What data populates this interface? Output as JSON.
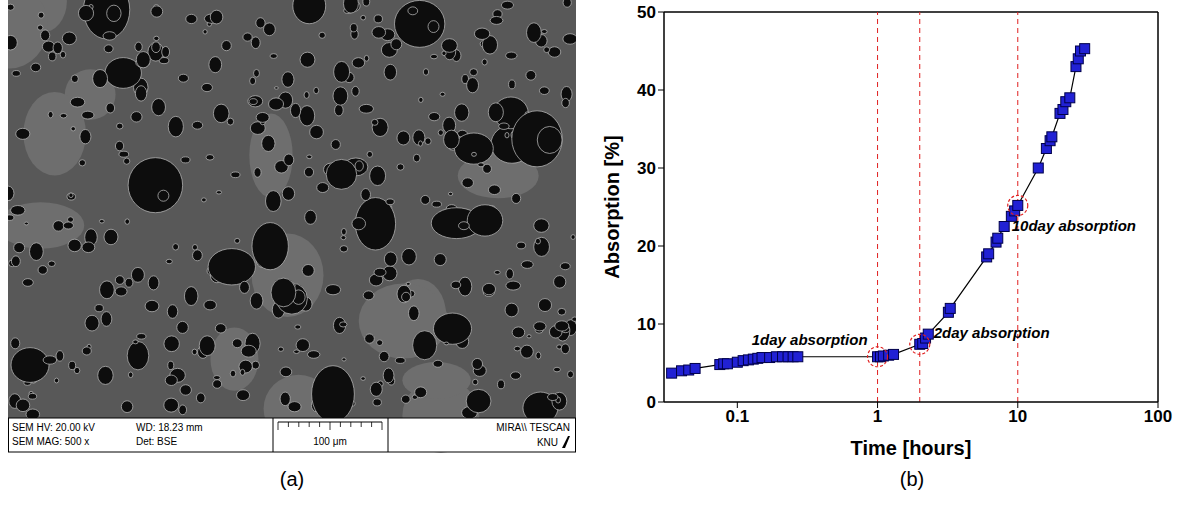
{
  "image_panel": {
    "label": "(a)",
    "info": [
      [
        "SEM HV: 20.00 kV",
        "WD: 18.23 mm"
      ],
      [
        "SEM MAG: 500 x",
        "Det: BSE"
      ]
    ],
    "scale_bar": "100 μm",
    "instrument": "MIRA\\\\ TESCAN",
    "logo": "KNU"
  },
  "chart_data": {
    "type": "line",
    "panel_label": "(b)",
    "xlabel": "Time [hours]",
    "ylabel": "Absorption [%]",
    "log": "x",
    "xlim": [
      0.03,
      100
    ],
    "xticks": [
      0.1,
      1,
      10,
      100
    ],
    "ylim": [
      0,
      50
    ],
    "yticks": [
      0,
      10,
      20,
      30,
      40,
      50
    ],
    "grid": false,
    "color": "#2121d4",
    "marker": "square",
    "x": [
      0.034,
      0.04,
      0.045,
      0.05,
      0.075,
      0.08,
      0.085,
      0.1,
      0.11,
      0.12,
      0.13,
      0.14,
      0.15,
      0.17,
      0.19,
      0.21,
      0.23,
      0.25,
      0.27,
      1.0,
      1.05,
      1.1,
      1.2,
      1.3,
      2.0,
      2.1,
      2.2,
      2.3,
      3.2,
      3.3,
      6.0,
      6.2,
      7.0,
      7.2,
      8.0,
      9.0,
      9.5,
      10.0,
      14.0,
      16.0,
      17.0,
      17.5,
      20.0,
      21.0,
      22.0,
      23.5,
      26.0,
      27.0,
      28.0,
      30.0
    ],
    "values": [
      3.7,
      4.0,
      4.1,
      4.3,
      4.8,
      4.9,
      4.9,
      5.1,
      5.3,
      5.4,
      5.5,
      5.6,
      5.7,
      5.7,
      5.8,
      5.8,
      5.8,
      5.8,
      5.8,
      5.8,
      5.8,
      5.9,
      6.0,
      6.1,
      7.4,
      7.5,
      8.2,
      8.7,
      11.5,
      12.0,
      18.6,
      19.0,
      20.5,
      21.0,
      22.5,
      23.8,
      24.5,
      25.2,
      30.0,
      32.5,
      33.5,
      34.0,
      37.0,
      37.5,
      38.5,
      39.0,
      43.0,
      44.0,
      45.0,
      45.3
    ],
    "annotations": [
      {
        "text": "1day absorption",
        "x": 1,
        "y": 5.8
      },
      {
        "text": "2day absorption",
        "x": 2,
        "y": 7.4
      },
      {
        "text": "10day absorption",
        "x": 10,
        "y": 25.2
      }
    ]
  }
}
